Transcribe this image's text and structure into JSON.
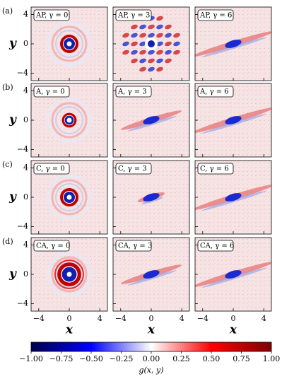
{
  "chart_data": {
    "type": "heatmap-grid",
    "row_labels": [
      "(a)",
      "(b)",
      "(c)",
      "(d)"
    ],
    "panel_labels": [
      [
        "AP, γ = 0",
        "AP, γ = 3",
        "AP, γ = 6"
      ],
      [
        "A, γ = 0",
        "A, γ = 3",
        "A, γ = 6"
      ],
      [
        "C, γ = 0",
        "C, γ = 3",
        "C, γ = 6"
      ],
      [
        "CA, γ = 0",
        "CA, γ = 3",
        "CA, γ = 6"
      ]
    ],
    "xlabel": "x",
    "ylabel": "y",
    "xlim": [
      -5,
      5
    ],
    "ylim": [
      -5,
      5
    ],
    "xticks": [
      {
        "value": -4,
        "label": "−4"
      },
      0,
      4
    ],
    "yticks": [
      {
        "value": -4,
        "label": "−4"
      },
      0,
      4
    ],
    "colorbar": {
      "label": "g(x, y)",
      "lim": [
        -1,
        1
      ],
      "ticks": [
        {
          "value": -1,
          "label": "−1.00"
        },
        {
          "value": -0.75,
          "label": "−0.75"
        },
        {
          "value": -0.5,
          "label": "−0.50"
        },
        {
          "value": -0.25,
          "label": "−0.25"
        },
        {
          "value": 0,
          "label": "0.00"
        },
        {
          "value": 0.25,
          "label": "0.25"
        },
        {
          "value": 0.5,
          "label": "0.50"
        },
        {
          "value": 0.75,
          "label": "0.75"
        },
        {
          "value": 1,
          "label": "1.00"
        }
      ]
    }
  }
}
